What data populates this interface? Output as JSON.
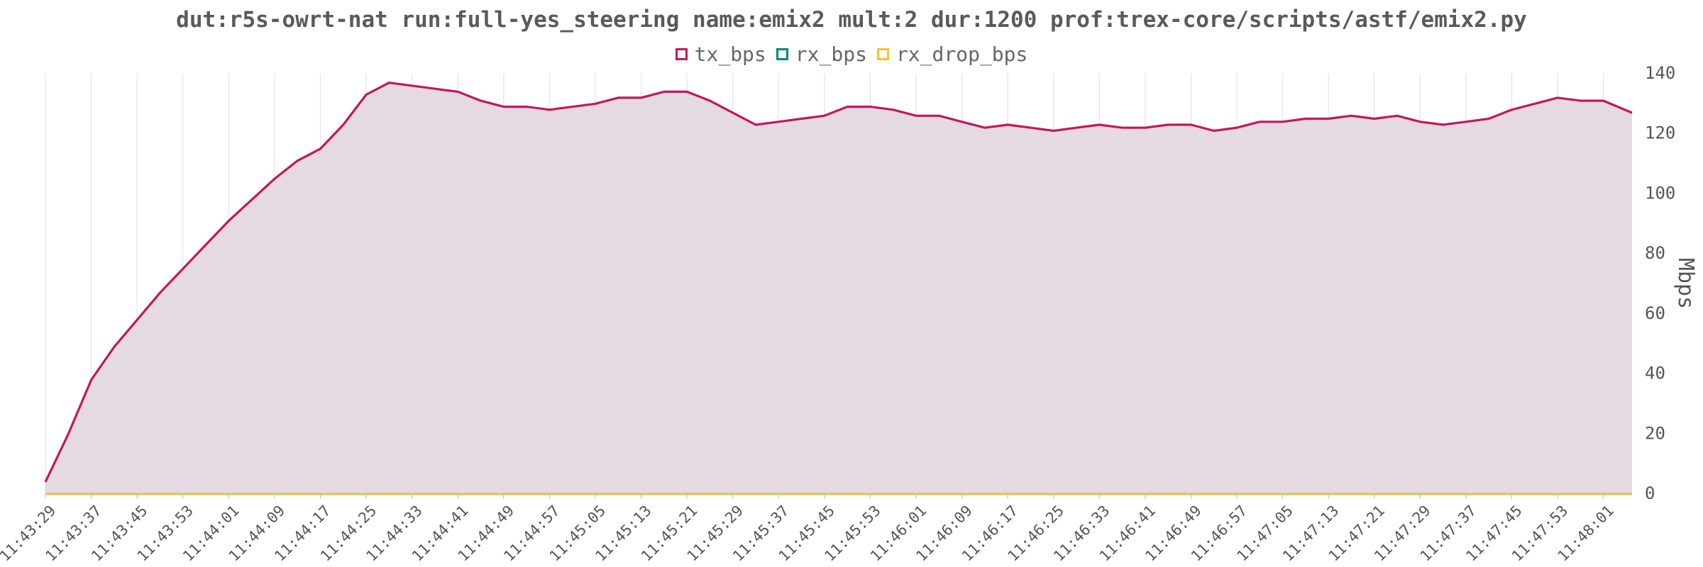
{
  "chart_data": {
    "type": "area",
    "title": "dut:r5s-owrt-nat run:full-yes_steering name:emix2 mult:2 dur:1200 prof:trex-core/scripts/astf/emix2.py",
    "ylabel": "Mbps",
    "xlabel": "",
    "ylim": [
      0,
      140
    ],
    "y_ticks": [
      0,
      20,
      40,
      60,
      80,
      100,
      120,
      140
    ],
    "y_axis_side": "right",
    "grid": "vertical",
    "legend_position": "top-center",
    "x_start": "11:43:29",
    "x_end": "11:48:06",
    "x_tick_labels": [
      "11:43:29",
      "11:43:37",
      "11:43:45",
      "11:43:53",
      "11:44:01",
      "11:44:09",
      "11:44:17",
      "11:44:25",
      "11:44:33",
      "11:44:41",
      "11:44:49",
      "11:44:57",
      "11:45:05",
      "11:45:13",
      "11:45:21",
      "11:45:29",
      "11:45:37",
      "11:45:45",
      "11:45:53",
      "11:46:01",
      "11:46:09",
      "11:46:17",
      "11:46:25",
      "11:46:33",
      "11:46:41",
      "11:46:49",
      "11:46:57",
      "11:47:05",
      "11:47:13",
      "11:47:21",
      "11:47:29",
      "11:47:37",
      "11:47:45",
      "11:47:53",
      "11:48:01"
    ],
    "series": [
      {
        "name": "tx_bps",
        "color": "#c2185b",
        "fill": "#e6dae2",
        "x": [
          "11:43:29",
          "11:43:33",
          "11:43:37",
          "11:43:41",
          "11:43:45",
          "11:43:49",
          "11:43:53",
          "11:43:57",
          "11:44:01",
          "11:44:05",
          "11:44:09",
          "11:44:13",
          "11:44:17",
          "11:44:21",
          "11:44:25",
          "11:44:29",
          "11:44:33",
          "11:44:37",
          "11:44:41",
          "11:44:45",
          "11:44:49",
          "11:44:53",
          "11:44:57",
          "11:45:01",
          "11:45:05",
          "11:45:09",
          "11:45:13",
          "11:45:17",
          "11:45:21",
          "11:45:25",
          "11:45:29",
          "11:45:33",
          "11:45:37",
          "11:45:41",
          "11:45:45",
          "11:45:49",
          "11:45:53",
          "11:45:57",
          "11:46:01",
          "11:46:05",
          "11:46:09",
          "11:46:13",
          "11:46:17",
          "11:46:21",
          "11:46:25",
          "11:46:29",
          "11:46:33",
          "11:46:37",
          "11:46:41",
          "11:46:45",
          "11:46:49",
          "11:46:53",
          "11:46:57",
          "11:47:01",
          "11:47:05",
          "11:47:09",
          "11:47:13",
          "11:47:17",
          "11:47:21",
          "11:47:25",
          "11:47:29",
          "11:47:33",
          "11:47:37",
          "11:47:41",
          "11:47:45",
          "11:47:49",
          "11:47:53",
          "11:47:57",
          "11:48:01",
          "11:48:06"
        ],
        "values": [
          4,
          20,
          38,
          49,
          58,
          67,
          75,
          83,
          91,
          98,
          105,
          111,
          115,
          123,
          133,
          137,
          136,
          135,
          134,
          131,
          129,
          129,
          128,
          129,
          130,
          132,
          132,
          134,
          134,
          131,
          127,
          123,
          124,
          125,
          126,
          129,
          129,
          128,
          126,
          126,
          124,
          122,
          123,
          122,
          121,
          122,
          123,
          122,
          122,
          123,
          123,
          121,
          122,
          124,
          124,
          125,
          125,
          126,
          125,
          126,
          124,
          123,
          124,
          125,
          128,
          130,
          132,
          131,
          131,
          127
        ]
      },
      {
        "name": "rx_bps",
        "color": "#00897b",
        "x": [
          "11:43:29",
          "11:48:06"
        ],
        "values": [
          0,
          0
        ]
      },
      {
        "name": "rx_drop_bps",
        "color": "#fbc02d",
        "x": [
          "11:43:29",
          "11:48:06"
        ],
        "values": [
          0,
          0
        ]
      }
    ]
  }
}
